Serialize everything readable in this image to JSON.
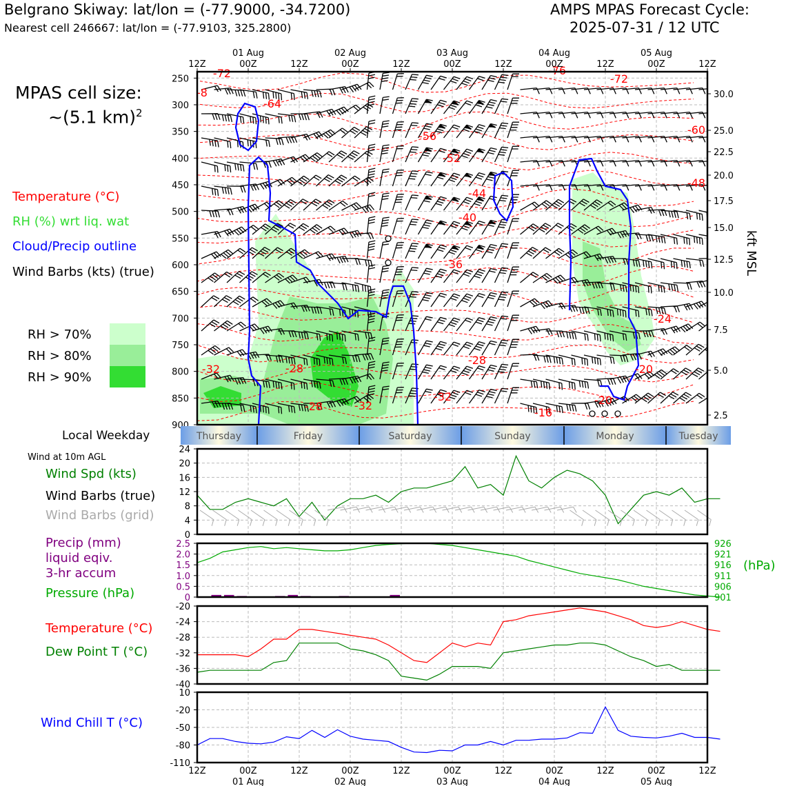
{
  "header": {
    "location": "Belgrano Skiway: lat/lon = (-77.9000, -34.7200)",
    "nearest_cell": "Nearest cell 246667: lat/lon = (-77.9103, 325.2800)",
    "cycle_title": "AMPS MPAS Forecast Cycle:",
    "cycle_time": "2025-07-31 / 12 UTC"
  },
  "cell_size": {
    "label": "MPAS cell size:",
    "value": "~(5.1 km)",
    "exp": "2"
  },
  "legend_upper": {
    "temperature": "Temperature (°C)",
    "rh": "RH (%) wrt liq. wat",
    "cloud": "Cloud/Precip outline",
    "wind": "Wind Barbs (kts) (true)"
  },
  "rh_legend": [
    "RH > 70%",
    "RH > 80%",
    "RH > 90%"
  ],
  "weekday_label": "Local Weekday",
  "wind10m_label": "Wind at 10m AGL",
  "legend_wind": {
    "spd": "Wind Spd (kts)",
    "barbs_true": "Wind Barbs (true)",
    "barbs_grid": "Wind Barbs (grid)"
  },
  "legend_precip": {
    "l1": "Precip (mm)",
    "l2": "liquid eqiv.",
    "l3": "3-hr accum",
    "pressure": "Pressure (hPa)"
  },
  "legend_temp": {
    "t": "Temperature (°C)",
    "td": "Dew Point T (°C)"
  },
  "legend_chill": "Wind Chill T (°C)",
  "hpa_unit": "(hPa)",
  "kft_label": "kft MSL",
  "colors": {
    "temperature": "#ff0000",
    "dewpoint": "#008000",
    "pressure": "#00aa00",
    "precip_label": "#800080",
    "rh_light": "#ccffcc",
    "rh_mid": "#99ee99",
    "rh_dark": "#33dd33",
    "cloud": "#0000ff",
    "windchill": "#0000ff",
    "grid_barbs": "#aaaaaa"
  },
  "chart_data": {
    "time_axis": {
      "top_ticks": [
        "12Z",
        "00Z",
        "12Z",
        "00Z",
        "12Z",
        "00Z",
        "12Z",
        "00Z",
        "12Z",
        "00Z",
        "12Z"
      ],
      "date_labels": [
        "01 Aug",
        "02 Aug",
        "03 Aug",
        "04 Aug",
        "05 Aug"
      ],
      "weekdays": [
        "Thursday",
        "Friday",
        "Saturday",
        "Sunday",
        "Monday",
        "Tuesday"
      ],
      "hours_span": [
        0,
        120
      ],
      "step_hours": 3
    },
    "upper_air": {
      "type": "heatmap",
      "pressure_ticks": [
        250,
        300,
        350,
        400,
        450,
        500,
        550,
        600,
        650,
        700,
        750,
        800,
        850,
        900
      ],
      "kft_ticks": [
        "30.0",
        "25.0",
        "22.5",
        "20.0",
        "17.5",
        "15.0",
        "12.5",
        "10.0",
        "7.5",
        "5.0",
        "2.5"
      ],
      "temperature_labels": [
        "-72",
        "-8",
        "-64",
        "-56",
        "-52",
        "-44",
        "-40",
        "-36",
        "-28",
        "-32",
        "-28",
        "-32",
        "-28",
        "-32",
        "-16",
        "-20",
        "-20",
        "-24",
        "-48",
        "-60",
        "-72",
        "-76"
      ]
    },
    "wind10m": {
      "type": "line",
      "ylim": [
        0,
        24
      ],
      "yticks": [
        0,
        4,
        8,
        12,
        16,
        20,
        24
      ],
      "speed": [
        11,
        7,
        7,
        9,
        10,
        9,
        8,
        10,
        5,
        9,
        4,
        8,
        10,
        10,
        11,
        9,
        12,
        13,
        13,
        14,
        15,
        19,
        13,
        14,
        11,
        22,
        15,
        13,
        16,
        18,
        17,
        15,
        11,
        3,
        7,
        11,
        12,
        11,
        13,
        9,
        10,
        10
      ]
    },
    "precip_pressure": {
      "type": "bar",
      "precip_ylim": [
        0,
        2.5
      ],
      "precip_yticks": [
        "0",
        "0.5",
        "1.0",
        "1.5",
        "2.0",
        "2.5"
      ],
      "precip": [
        0,
        0.1,
        0.1,
        0.05,
        0,
        0,
        0.05,
        0.1,
        0.05,
        0,
        0,
        0.05,
        0,
        0,
        0,
        0.1,
        0,
        0,
        0,
        0,
        0,
        0,
        0,
        0,
        0,
        0,
        0,
        0,
        0,
        0,
        0,
        0,
        0,
        0,
        0,
        0,
        0,
        0,
        0,
        0,
        0
      ],
      "pressure_ylim": [
        901,
        926
      ],
      "pressure_ticks": [
        "926",
        "921",
        "916",
        "911",
        "906",
        "901"
      ],
      "pressure": [
        917,
        919,
        922,
        923,
        924,
        924.5,
        923.5,
        924,
        923.5,
        923,
        922.5,
        922.5,
        923,
        924,
        925,
        925.5,
        925.8,
        926,
        926,
        925.5,
        925,
        924,
        923,
        922,
        921,
        920,
        918,
        916.5,
        915,
        913.5,
        912,
        911,
        910,
        909,
        907.5,
        906,
        905,
        904,
        903,
        902,
        901.5,
        901
      ]
    },
    "temperature": {
      "type": "line",
      "ylim": [
        -40,
        -20
      ],
      "yticks": [
        -20,
        -24,
        -28,
        -32,
        -36,
        -40
      ],
      "temp": [
        -32.5,
        -32.5,
        -32.5,
        -32.5,
        -33,
        -31,
        -28.5,
        -28.5,
        -26,
        -26,
        -26.5,
        -27,
        -27.5,
        -28,
        -28.5,
        -30,
        -32,
        -34,
        -34.5,
        -32,
        -29.5,
        -30.5,
        -29.5,
        -30,
        -24,
        -23.5,
        -22.5,
        -22,
        -21.5,
        -21,
        -20.5,
        -21,
        -21.5,
        -22.5,
        -23.5,
        -25,
        -25.5,
        -25,
        -24,
        -25,
        -26,
        -26.5
      ],
      "dewpoint": [
        -37,
        -36.5,
        -36.5,
        -36.5,
        -36.5,
        -36.5,
        -34.5,
        -34,
        -29.5,
        -29.5,
        -29.5,
        -29.5,
        -31,
        -31.5,
        -32.5,
        -34,
        -38,
        -38.5,
        -39,
        -37.5,
        -35.5,
        -35.5,
        -35.5,
        -36,
        -32,
        -31.5,
        -31,
        -30.5,
        -30,
        -30,
        -29.5,
        -29.5,
        -30,
        -31.5,
        -33,
        -34,
        -35.5,
        -35,
        -36.5,
        -36.5,
        -36.5,
        -36.5
      ]
    },
    "windchill": {
      "type": "line",
      "ylim": [
        -110,
        10
      ],
      "yticks": [
        "10",
        "-20",
        "-50",
        "-80",
        "-110"
      ],
      "values": [
        -80,
        -69,
        -69,
        -74,
        -77,
        -78,
        -75,
        -66,
        -69,
        -55,
        -67,
        -54,
        -65,
        -70,
        -72,
        -74,
        -84,
        -92,
        -93,
        -89,
        -90,
        -80,
        -80,
        -74,
        -80,
        -72,
        -72,
        -70,
        -70,
        -68,
        -59,
        -60,
        -15,
        -55,
        -65,
        -67,
        -68,
        -65,
        -60,
        -67,
        -67,
        -70
      ]
    },
    "x_ticks_bottom": [
      "12Z",
      "00Z",
      "12Z",
      "00Z",
      "12Z",
      "00Z",
      "12Z",
      "00Z",
      "12Z",
      "00Z",
      "12Z"
    ],
    "date_labels_bottom": [
      "01 Aug",
      "02 Aug",
      "03 Aug",
      "04 Aug",
      "05 Aug"
    ]
  }
}
